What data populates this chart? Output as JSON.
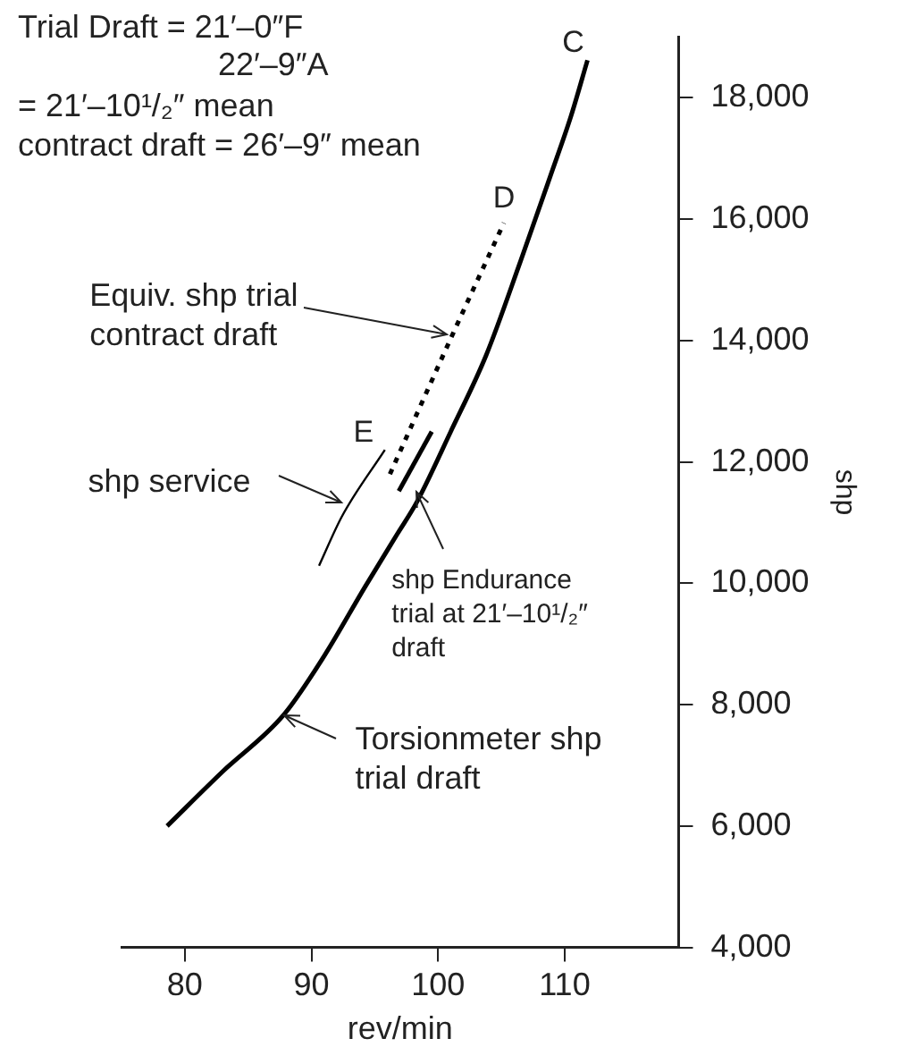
{
  "chart_data": {
    "type": "line",
    "xlabel": "rev/min",
    "ylabel": "shp",
    "xlim": [
      75,
      119
    ],
    "xticks": [
      80,
      90,
      100,
      110
    ],
    "ylim": [
      4000,
      19000
    ],
    "yticks": [
      {
        "value": 4000,
        "label": "4,000"
      },
      {
        "value": 6000,
        "label": "6,000"
      },
      {
        "value": 8000,
        "label": "8,000"
      },
      {
        "value": 10000,
        "label": "10,000"
      },
      {
        "value": 12000,
        "label": "12,000"
      },
      {
        "value": 14000,
        "label": "14,000"
      },
      {
        "value": 16000,
        "label": "16,000"
      },
      {
        "value": 18000,
        "label": "18,000"
      }
    ],
    "grid": false,
    "legend": false,
    "marker": "none",
    "series": [
      {
        "color": "#000000",
        "line_style": "solid",
        "x": [
          78.6,
          83,
          87.8,
          91,
          94.2,
          96.8,
          98.3,
          101,
          103.8,
          106.5,
          108.9,
          110.5,
          111.8
        ],
        "values": [
          6000,
          6900,
          7830,
          8800,
          9930,
          10820,
          11330,
          12500,
          13760,
          15300,
          16730,
          17700,
          18620
        ]
      },
      {
        "color": "#000000",
        "line_style": "dotted",
        "x": [
          96.2,
          101.1,
          105.2
        ],
        "values": [
          11800,
          14080,
          15940
        ]
      },
      {
        "color": "#000000",
        "line_style": "solid",
        "x": [
          96.9,
          99.5
        ],
        "values": [
          11520,
          12500
        ]
      },
      {
        "color": "#000000",
        "line_style": "solid",
        "x": [
          90.6,
          92.4,
          95.8
        ],
        "values": [
          10290,
          11100,
          12200
        ]
      }
    ],
    "annotations": [
      "Trial Draft = 21′–0″F",
      "22′–9″A",
      "= 21′–10¹/₂″ mean",
      "contract draft = 26′–9″ mean",
      {
        "text": "C",
        "x": 111.8,
        "y": 18620
      },
      {
        "text": "D",
        "x": 105.2,
        "y": 15940
      },
      {
        "text": "E",
        "x": 95.8,
        "y": 12200
      },
      {
        "text": "Equiv. shp trial\ncontract draft",
        "x": 100.7,
        "y": 14090
      },
      {
        "text": "shp service",
        "x": 92.4,
        "y": 11330
      },
      {
        "text": "shp Endurance\ntrial at 21′–10¹/₂″\ndraft",
        "x": 98.3,
        "y": 11520
      },
      {
        "text": "Torsionmeter shp\ntrial draft",
        "x": 87.8,
        "y": 7830
      }
    ]
  }
}
